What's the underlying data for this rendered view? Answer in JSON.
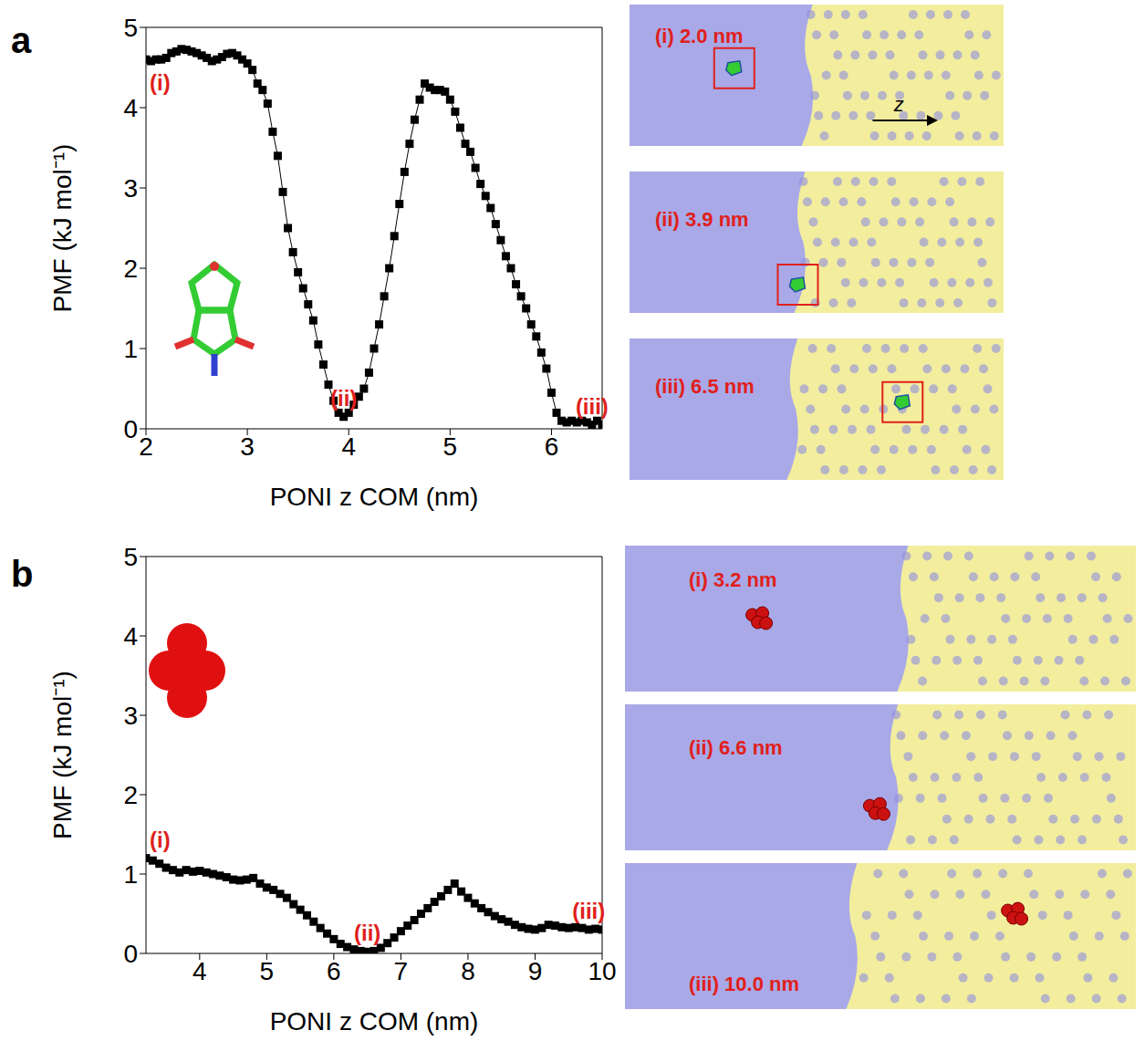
{
  "chart_data": [
    {
      "panel": "a",
      "type": "line",
      "marker": "square",
      "color": "#000000",
      "x_label": "PONI z COM (nm)",
      "y_label": "PMF (kJ mol⁻¹)",
      "xlim": [
        2,
        6.5
      ],
      "xticks": [
        2,
        3,
        4,
        5,
        6
      ],
      "ylim": [
        0,
        5
      ],
      "yticks": [
        0,
        1,
        2,
        3,
        4,
        5
      ],
      "x": [
        2.0,
        2.05,
        2.1,
        2.15,
        2.2,
        2.25,
        2.3,
        2.35,
        2.4,
        2.45,
        2.5,
        2.55,
        2.6,
        2.65,
        2.7,
        2.75,
        2.8,
        2.85,
        2.9,
        2.95,
        3.0,
        3.05,
        3.1,
        3.15,
        3.2,
        3.25,
        3.3,
        3.35,
        3.4,
        3.45,
        3.5,
        3.55,
        3.6,
        3.65,
        3.7,
        3.75,
        3.8,
        3.85,
        3.9,
        3.95,
        4.0,
        4.05,
        4.1,
        4.15,
        4.2,
        4.25,
        4.3,
        4.35,
        4.4,
        4.45,
        4.5,
        4.55,
        4.6,
        4.65,
        4.7,
        4.75,
        4.8,
        4.85,
        4.9,
        4.95,
        5.0,
        5.05,
        5.1,
        5.15,
        5.2,
        5.25,
        5.3,
        5.35,
        5.4,
        5.45,
        5.5,
        5.55,
        5.6,
        5.65,
        5.7,
        5.75,
        5.8,
        5.85,
        5.9,
        5.95,
        6.0,
        6.05,
        6.1,
        6.15,
        6.2,
        6.25,
        6.3,
        6.35,
        6.4,
        6.45,
        6.5
      ],
      "values": [
        4.6,
        4.58,
        4.6,
        4.6,
        4.62,
        4.68,
        4.7,
        4.73,
        4.72,
        4.7,
        4.68,
        4.65,
        4.62,
        4.58,
        4.6,
        4.63,
        4.67,
        4.68,
        4.65,
        4.6,
        4.55,
        4.47,
        4.3,
        4.22,
        4.05,
        3.7,
        3.4,
        2.95,
        2.5,
        2.2,
        1.95,
        1.75,
        1.55,
        1.35,
        1.05,
        0.8,
        0.55,
        0.35,
        0.2,
        0.15,
        0.2,
        0.3,
        0.4,
        0.5,
        0.7,
        1.0,
        1.3,
        1.65,
        2.0,
        2.4,
        2.8,
        3.2,
        3.55,
        3.85,
        4.1,
        4.3,
        4.25,
        4.22,
        4.22,
        4.2,
        4.1,
        3.95,
        3.75,
        3.55,
        3.45,
        3.25,
        3.05,
        2.9,
        2.75,
        2.55,
        2.35,
        2.15,
        2.0,
        1.8,
        1.65,
        1.5,
        1.3,
        1.15,
        0.95,
        0.75,
        0.45,
        0.2,
        0.1,
        0.08,
        0.1,
        0.08,
        0.1,
        0.08,
        0.05,
        0.1,
        0.05
      ],
      "annotations": [
        {
          "text": "(i)",
          "x": 2.0,
          "y": 4.6
        },
        {
          "text": "(ii)",
          "x": 3.95,
          "y": 0.15
        },
        {
          "text": "(iii)",
          "x": 6.4,
          "y": 0.05
        }
      ],
      "snapshot_labels": [
        "(i) 2.0 nm",
        "(ii) 3.9 nm",
        "(iii) 6.5 nm"
      ],
      "direction_label": "z"
    },
    {
      "panel": "b",
      "type": "line",
      "marker": "square",
      "color": "#000000",
      "x_label": "PONI z COM (nm)",
      "y_label": "PMF (kJ mol⁻¹)",
      "xlim": [
        3.2,
        10
      ],
      "xticks": [
        4,
        5,
        6,
        7,
        8,
        9,
        10
      ],
      "ylim": [
        0,
        5
      ],
      "yticks": [
        0,
        1,
        2,
        3,
        4,
        5
      ],
      "x": [
        3.2,
        3.3,
        3.4,
        3.5,
        3.6,
        3.7,
        3.8,
        3.9,
        4.0,
        4.1,
        4.2,
        4.3,
        4.4,
        4.5,
        4.6,
        4.7,
        4.8,
        4.9,
        5.0,
        5.1,
        5.2,
        5.3,
        5.4,
        5.5,
        5.6,
        5.7,
        5.8,
        5.9,
        6.0,
        6.1,
        6.2,
        6.3,
        6.4,
        6.5,
        6.6,
        6.7,
        6.8,
        6.9,
        7.0,
        7.1,
        7.2,
        7.3,
        7.4,
        7.5,
        7.6,
        7.7,
        7.8,
        7.9,
        8.0,
        8.1,
        8.2,
        8.3,
        8.4,
        8.5,
        8.6,
        8.7,
        8.8,
        8.9,
        9.0,
        9.1,
        9.2,
        9.3,
        9.4,
        9.5,
        9.6,
        9.7,
        9.8,
        9.9,
        10.0
      ],
      "values": [
        1.2,
        1.17,
        1.13,
        1.08,
        1.05,
        1.02,
        1.05,
        1.03,
        1.04,
        1.02,
        1.0,
        0.98,
        0.96,
        0.93,
        0.92,
        0.93,
        0.95,
        0.88,
        0.83,
        0.8,
        0.75,
        0.7,
        0.62,
        0.55,
        0.48,
        0.4,
        0.32,
        0.25,
        0.18,
        0.12,
        0.08,
        0.05,
        0.03,
        0.02,
        0.03,
        0.07,
        0.13,
        0.2,
        0.28,
        0.35,
        0.42,
        0.5,
        0.57,
        0.65,
        0.72,
        0.8,
        0.88,
        0.78,
        0.7,
        0.63,
        0.57,
        0.52,
        0.47,
        0.43,
        0.4,
        0.36,
        0.33,
        0.31,
        0.3,
        0.32,
        0.36,
        0.35,
        0.33,
        0.32,
        0.33,
        0.32,
        0.3,
        0.31,
        0.3
      ],
      "annotations": [
        {
          "text": "(i)",
          "x": 3.2,
          "y": 1.2
        },
        {
          "text": "(ii)",
          "x": 6.5,
          "y": 0.02
        },
        {
          "text": "(iii)",
          "x": 9.8,
          "y": 0.3
        }
      ],
      "snapshot_labels": [
        "(i) 3.2 nm",
        "(ii) 6.6 nm",
        "(iii) 10.0 nm"
      ]
    }
  ]
}
